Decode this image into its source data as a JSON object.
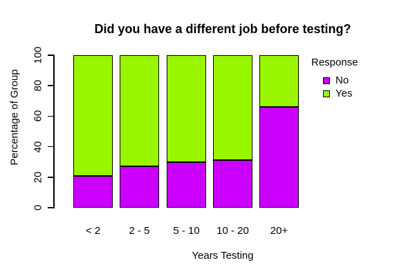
{
  "chart_data": {
    "type": "bar",
    "stacked": true,
    "title": "Did you have a different job before testing?",
    "xlabel": "Years Testing",
    "ylabel": "Percentage of Group",
    "categories": [
      "< 2",
      "2 - 5",
      "5 - 10",
      "10 - 20",
      "20+"
    ],
    "series": [
      {
        "name": "No",
        "color": "#CC00FF",
        "values": [
          21,
          27,
          30,
          31,
          66
        ]
      },
      {
        "name": "Yes",
        "color": "#99F500",
        "values": [
          79,
          73,
          70,
          69,
          34
        ]
      }
    ],
    "ylim": [
      0,
      100
    ],
    "yticks": [
      0,
      20,
      40,
      60,
      80,
      100
    ],
    "grid": false,
    "legend": {
      "title": "Response",
      "position": "right",
      "entries": [
        {
          "label": "No",
          "color": "#CC00FF"
        },
        {
          "label": "Yes",
          "color": "#99F500"
        }
      ]
    },
    "bar_border_color": "#000000",
    "background": "#FFFFFF"
  }
}
